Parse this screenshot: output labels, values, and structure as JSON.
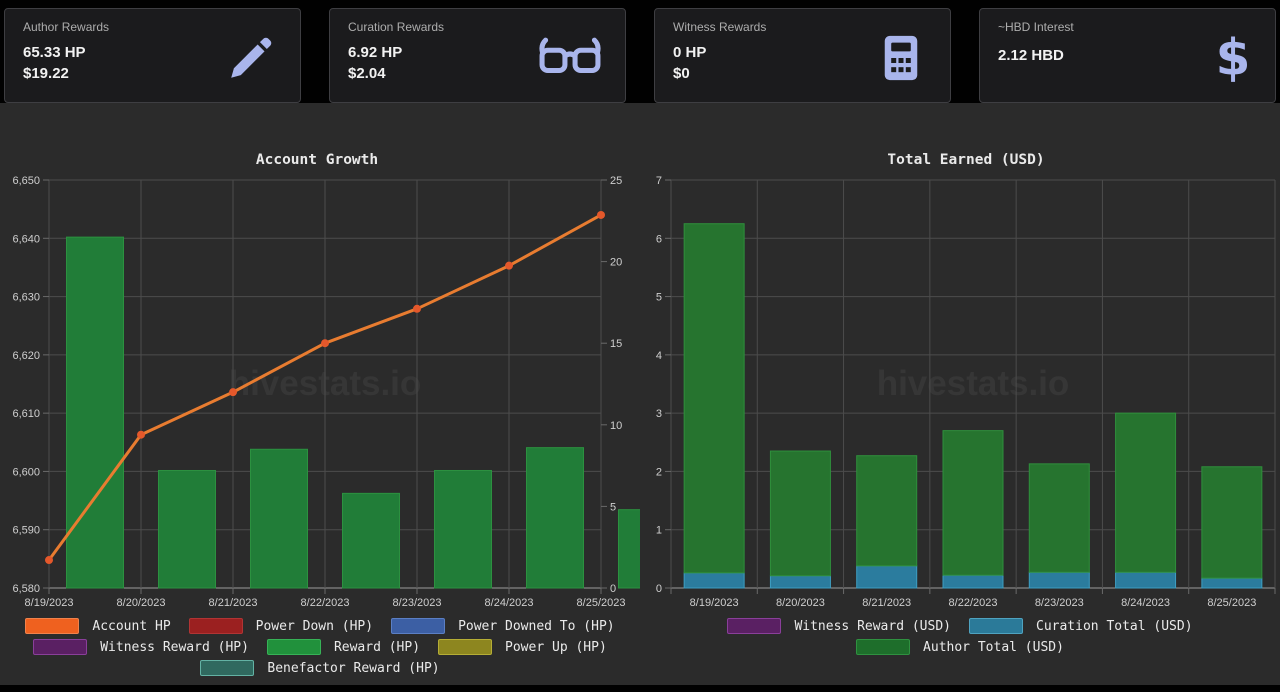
{
  "cards": [
    {
      "label": "Author Rewards",
      "value_hp": "65.33 HP",
      "value_usd": "$19.22",
      "icon": "pencil-icon"
    },
    {
      "label": "Curation Rewards",
      "value_hp": "6.92 HP",
      "value_usd": "$2.04",
      "icon": "glasses-icon"
    },
    {
      "label": "Witness Rewards",
      "value_hp": "0 HP",
      "value_usd": "$0",
      "icon": "calculator-icon"
    },
    {
      "label": "~HBD Interest",
      "value_hp": "2.12 HBD",
      "value_usd": "",
      "icon": "dollar-icon"
    }
  ],
  "chart_data": [
    {
      "type": "bar+line",
      "title": "Account Growth",
      "watermark": "hivestats.io",
      "categories": [
        "8/19/2023",
        "8/20/2023",
        "8/21/2023",
        "8/22/2023",
        "8/23/2023",
        "8/24/2023",
        "8/25/2023"
      ],
      "left_axis": {
        "min": 6580,
        "max": 6650,
        "tick_values": [
          6580,
          6590,
          6600,
          6610,
          6620,
          6630,
          6640,
          6650
        ],
        "tick_labels": [
          "6,580",
          "6,590",
          "6,600",
          "6,610",
          "6,620",
          "6,630",
          "6,640",
          "6,650"
        ]
      },
      "right_axis": {
        "min": 0,
        "max": 25,
        "tick_values": [
          0,
          5,
          10,
          15,
          20,
          25
        ],
        "tick_labels": [
          "0",
          "5",
          "10",
          "15",
          "20",
          "25"
        ]
      },
      "series": [
        {
          "name": "Reward (HP)",
          "type": "bar",
          "axis": "right",
          "color": "#217d38",
          "border": "#2c9140",
          "values": [
            21.5,
            7.2,
            8.5,
            5.8,
            7.2,
            8.6,
            4.8
          ]
        },
        {
          "name": "Account HP",
          "type": "line",
          "axis": "left",
          "color": "#e87c30",
          "point_color": "#e4582b",
          "values": [
            6584.8,
            6606.3,
            6613.6,
            6622.0,
            6627.9,
            6635.3,
            6644.0
          ]
        }
      ]
    },
    {
      "type": "stacked-bar",
      "title": "Total Earned (USD)",
      "watermark": "hivestats.io",
      "categories": [
        "8/19/2023",
        "8/20/2023",
        "8/21/2023",
        "8/22/2023",
        "8/23/2023",
        "8/24/2023",
        "8/25/2023"
      ],
      "y_axis": {
        "min": 0,
        "max": 7,
        "tick_values": [
          0,
          1,
          2,
          3,
          4,
          5,
          6,
          7
        ],
        "tick_labels": [
          "0",
          "1",
          "2",
          "3",
          "4",
          "5",
          "6",
          "7"
        ]
      },
      "series": [
        {
          "name": "Curation Total (USD)",
          "color": "#2b7c9e",
          "border": "#3d9ec2",
          "values": [
            0.26,
            0.21,
            0.38,
            0.22,
            0.27,
            0.27,
            0.17
          ]
        },
        {
          "name": "Author Total (USD)",
          "color": "#26742f",
          "border": "#2f8f3c",
          "values": [
            5.99,
            2.14,
            1.89,
            2.48,
            1.86,
            2.73,
            1.91
          ]
        }
      ]
    }
  ],
  "legends": {
    "left": {
      "rows": [
        [
          {
            "label": "Account HP",
            "fill": "#ef611f",
            "border": "#f0824c"
          },
          {
            "label": "Power Down (HP)",
            "fill": "#9b2020",
            "border": "#b13434"
          },
          {
            "label": "Power Downed To (HP)",
            "fill": "#3c5fa4",
            "border": "#5b7fc4"
          }
        ],
        [
          {
            "label": "Witness Reward (HP)",
            "fill": "#5a2063",
            "border": "#8a3f9a"
          },
          {
            "label": "Reward (HP)",
            "fill": "#21913c",
            "border": "#37b257"
          },
          {
            "label": "Power Up (HP)",
            "fill": "#8d861f",
            "border": "#b5ad35"
          }
        ],
        [
          {
            "label": "Benefactor Reward (HP)",
            "fill": "#30695f",
            "border": "#63b2a4"
          }
        ]
      ]
    },
    "right": {
      "rows": [
        [
          {
            "label": "Witness Reward (USD)",
            "fill": "#5a2063",
            "border": "#8a3f9a"
          },
          {
            "label": "Curation Total (USD)",
            "fill": "#2b7a99",
            "border": "#4fa3c0"
          }
        ],
        [
          {
            "label": "Author Total (USD)",
            "fill": "#1e6e2b",
            "border": "#2f9140"
          }
        ]
      ]
    }
  },
  "colors": {
    "page_bg": "#010101",
    "main_bg": "#2b2b2b",
    "card_bg": "#1b1b1d",
    "icon_accent": "#a9b5ec",
    "gridline": "#4c4c4c",
    "axis_line": "#9b9b9b"
  }
}
